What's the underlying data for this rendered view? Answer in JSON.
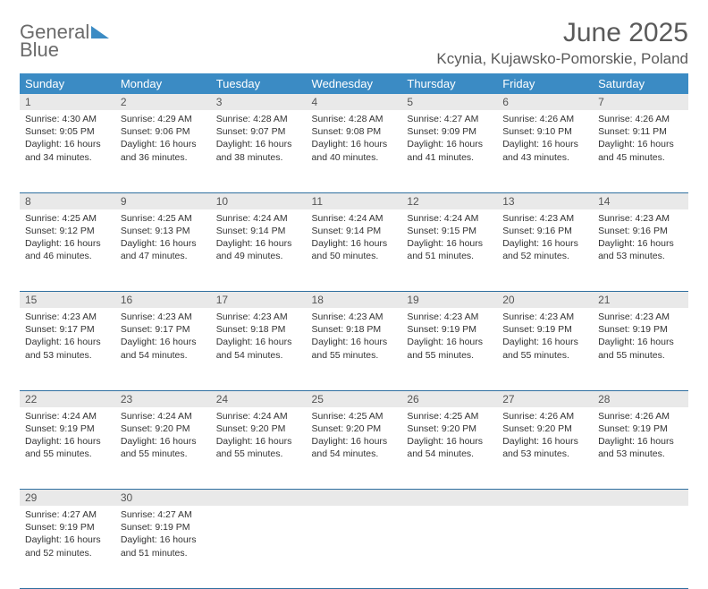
{
  "logo": {
    "line1": "General",
    "line2": "Blue"
  },
  "title": "June 2025",
  "location": "Kcynia, Kujawsko-Pomorskie, Poland",
  "colors": {
    "header_bg": "#3b8bc4",
    "header_text": "#ffffff",
    "daynum_bg": "#e9e9e9",
    "row_border": "#2f6fa0",
    "body_text": "#333333",
    "title_text": "#5a5a5a"
  },
  "weekdays": [
    "Sunday",
    "Monday",
    "Tuesday",
    "Wednesday",
    "Thursday",
    "Friday",
    "Saturday"
  ],
  "weeks": [
    {
      "nums": [
        "1",
        "2",
        "3",
        "4",
        "5",
        "6",
        "7"
      ],
      "days": [
        {
          "sunrise": "4:30 AM",
          "sunset": "9:05 PM",
          "daylight": "16 hours and 34 minutes."
        },
        {
          "sunrise": "4:29 AM",
          "sunset": "9:06 PM",
          "daylight": "16 hours and 36 minutes."
        },
        {
          "sunrise": "4:28 AM",
          "sunset": "9:07 PM",
          "daylight": "16 hours and 38 minutes."
        },
        {
          "sunrise": "4:28 AM",
          "sunset": "9:08 PM",
          "daylight": "16 hours and 40 minutes."
        },
        {
          "sunrise": "4:27 AM",
          "sunset": "9:09 PM",
          "daylight": "16 hours and 41 minutes."
        },
        {
          "sunrise": "4:26 AM",
          "sunset": "9:10 PM",
          "daylight": "16 hours and 43 minutes."
        },
        {
          "sunrise": "4:26 AM",
          "sunset": "9:11 PM",
          "daylight": "16 hours and 45 minutes."
        }
      ]
    },
    {
      "nums": [
        "8",
        "9",
        "10",
        "11",
        "12",
        "13",
        "14"
      ],
      "days": [
        {
          "sunrise": "4:25 AM",
          "sunset": "9:12 PM",
          "daylight": "16 hours and 46 minutes."
        },
        {
          "sunrise": "4:25 AM",
          "sunset": "9:13 PM",
          "daylight": "16 hours and 47 minutes."
        },
        {
          "sunrise": "4:24 AM",
          "sunset": "9:14 PM",
          "daylight": "16 hours and 49 minutes."
        },
        {
          "sunrise": "4:24 AM",
          "sunset": "9:14 PM",
          "daylight": "16 hours and 50 minutes."
        },
        {
          "sunrise": "4:24 AM",
          "sunset": "9:15 PM",
          "daylight": "16 hours and 51 minutes."
        },
        {
          "sunrise": "4:23 AM",
          "sunset": "9:16 PM",
          "daylight": "16 hours and 52 minutes."
        },
        {
          "sunrise": "4:23 AM",
          "sunset": "9:16 PM",
          "daylight": "16 hours and 53 minutes."
        }
      ]
    },
    {
      "nums": [
        "15",
        "16",
        "17",
        "18",
        "19",
        "20",
        "21"
      ],
      "days": [
        {
          "sunrise": "4:23 AM",
          "sunset": "9:17 PM",
          "daylight": "16 hours and 53 minutes."
        },
        {
          "sunrise": "4:23 AM",
          "sunset": "9:17 PM",
          "daylight": "16 hours and 54 minutes."
        },
        {
          "sunrise": "4:23 AM",
          "sunset": "9:18 PM",
          "daylight": "16 hours and 54 minutes."
        },
        {
          "sunrise": "4:23 AM",
          "sunset": "9:18 PM",
          "daylight": "16 hours and 55 minutes."
        },
        {
          "sunrise": "4:23 AM",
          "sunset": "9:19 PM",
          "daylight": "16 hours and 55 minutes."
        },
        {
          "sunrise": "4:23 AM",
          "sunset": "9:19 PM",
          "daylight": "16 hours and 55 minutes."
        },
        {
          "sunrise": "4:23 AM",
          "sunset": "9:19 PM",
          "daylight": "16 hours and 55 minutes."
        }
      ]
    },
    {
      "nums": [
        "22",
        "23",
        "24",
        "25",
        "26",
        "27",
        "28"
      ],
      "days": [
        {
          "sunrise": "4:24 AM",
          "sunset": "9:19 PM",
          "daylight": "16 hours and 55 minutes."
        },
        {
          "sunrise": "4:24 AM",
          "sunset": "9:20 PM",
          "daylight": "16 hours and 55 minutes."
        },
        {
          "sunrise": "4:24 AM",
          "sunset": "9:20 PM",
          "daylight": "16 hours and 55 minutes."
        },
        {
          "sunrise": "4:25 AM",
          "sunset": "9:20 PM",
          "daylight": "16 hours and 54 minutes."
        },
        {
          "sunrise": "4:25 AM",
          "sunset": "9:20 PM",
          "daylight": "16 hours and 54 minutes."
        },
        {
          "sunrise": "4:26 AM",
          "sunset": "9:20 PM",
          "daylight": "16 hours and 53 minutes."
        },
        {
          "sunrise": "4:26 AM",
          "sunset": "9:19 PM",
          "daylight": "16 hours and 53 minutes."
        }
      ]
    },
    {
      "nums": [
        "29",
        "30",
        "",
        "",
        "",
        "",
        ""
      ],
      "days": [
        {
          "sunrise": "4:27 AM",
          "sunset": "9:19 PM",
          "daylight": "16 hours and 52 minutes."
        },
        {
          "sunrise": "4:27 AM",
          "sunset": "9:19 PM",
          "daylight": "16 hours and 51 minutes."
        },
        null,
        null,
        null,
        null,
        null
      ]
    }
  ],
  "labels": {
    "sunrise": "Sunrise: ",
    "sunset": "Sunset: ",
    "daylight": "Daylight: "
  }
}
